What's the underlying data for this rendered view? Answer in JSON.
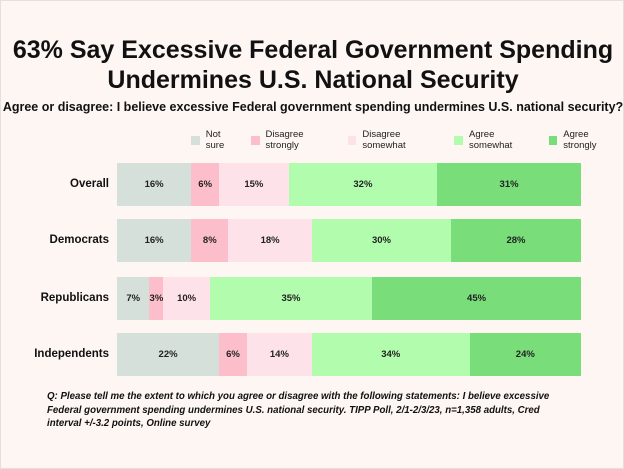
{
  "chart_data": {
    "type": "bar",
    "orientation": "horizontal-stacked-100",
    "title": "63% Say Excessive Federal Government Spending Undermines U.S. National Security",
    "subtitle": "Agree or disagree: I believe excessive Federal government spending undermines U.S. national security?",
    "categories": [
      "Overall",
      "Democrats",
      "Republicans",
      "Independents"
    ],
    "series": [
      {
        "name": "Not sure",
        "color": "#d5e0da",
        "values": [
          16,
          16,
          7,
          22
        ]
      },
      {
        "name": "Disagree strongly",
        "color": "#fdbecb",
        "values": [
          6,
          8,
          3,
          6
        ]
      },
      {
        "name": "Disagree somewhat",
        "color": "#fde2e9",
        "values": [
          15,
          18,
          10,
          14
        ]
      },
      {
        "name": "Agree somewhat",
        "color": "#b1fcad",
        "values": [
          32,
          30,
          35,
          34
        ]
      },
      {
        "name": "Agree strongly",
        "color": "#79dd7a",
        "values": [
          31,
          28,
          45,
          24
        ]
      }
    ],
    "value_suffix": "%",
    "legend_position": "top-right",
    "note": "Q:  Please tell me the extent to which you agree or disagree with the following statements: I believe excessive Federal government spending undermines U.S. national security. TIPP Poll, 2/1-2/3/23, n=1,358 adults, Cred interval +/-3.2 points, Online survey"
  }
}
